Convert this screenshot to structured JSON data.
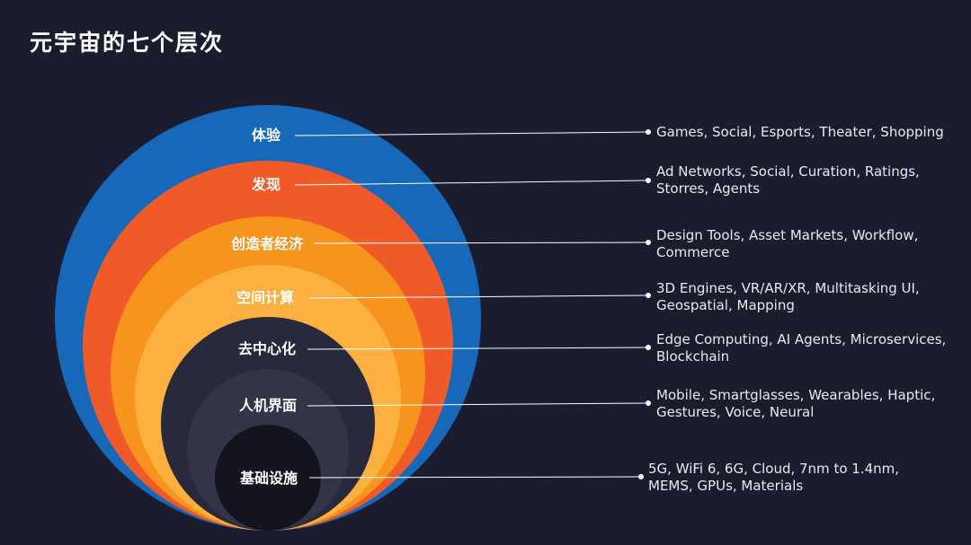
{
  "title": "元宇宙的七个层次",
  "colors": {
    "background": "#1b1d2e",
    "layer1": "#1768b8",
    "layer2": "#f05a28",
    "layer3": "#f7941d",
    "layer4": "#fbb040",
    "layer5": "#282a3c",
    "layer6": "#323447",
    "layer7": "#13141e"
  },
  "layers": [
    {
      "name": "体验",
      "description": [
        "Games, Social, Esports, Theater, Shopping"
      ]
    },
    {
      "name": "发现",
      "description": [
        "Ad Networks, Social, Curation, Ratings,",
        "Storres, Agents"
      ]
    },
    {
      "name": "创造者经济",
      "description": [
        "Design Tools, Asset Markets, Workflow,",
        "Commerce"
      ]
    },
    {
      "name": "空间计算",
      "description": [
        "3D Engines, VR/AR/XR, Multitasking UI,",
        "Geospatial, Mapping"
      ]
    },
    {
      "name": "去中心化",
      "description": [
        "Edge Computing, AI Agents, Microservices,",
        "Blockchain"
      ]
    },
    {
      "name": "人机界面",
      "description": [
        "Mobile, Smartglasses, Wearables, Haptic,",
        "Gestures, Voice, Neural"
      ]
    },
    {
      "name": "基础设施",
      "description": [
        "5G, WiFi 6, 6G, Cloud, 7nm to 1.4nm,",
        "MEMS, GPUs, Materials"
      ]
    }
  ]
}
